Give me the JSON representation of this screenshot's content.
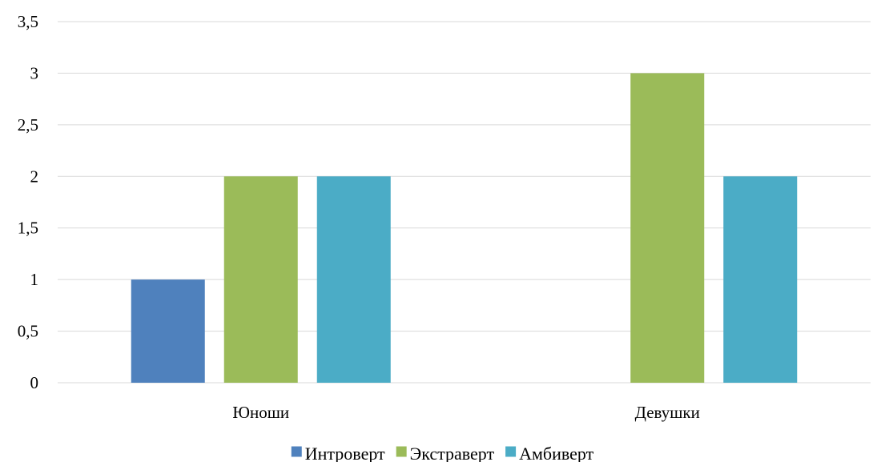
{
  "chart_data": {
    "type": "bar",
    "title": "",
    "xlabel": "",
    "ylabel": "",
    "ylim": [
      0,
      3.5
    ],
    "ytick_step": 0.5,
    "ytick_labels": [
      "0",
      "0,5",
      "1",
      "1,5",
      "2",
      "2,5",
      "3",
      "3,5"
    ],
    "grid": true,
    "legend_position": "bottom",
    "categories": [
      "Юноши",
      "Девушки"
    ],
    "series": [
      {
        "name": "Интроверт",
        "color": "#4f81bd",
        "values": [
          1,
          0
        ]
      },
      {
        "name": "Экстраверт",
        "color": "#9bbb59",
        "values": [
          2,
          3
        ]
      },
      {
        "name": "Амбиверт",
        "color": "#4bacc6",
        "values": [
          2,
          2
        ]
      }
    ]
  }
}
